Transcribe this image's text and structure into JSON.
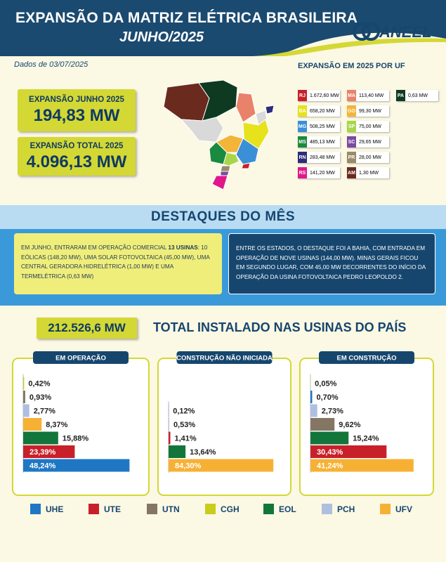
{
  "header": {
    "title": "EXPANSÃO DA MATRIZ ELÉTRICA BRASILEIRA",
    "subtitle": "JUNHO/2025",
    "logo": "ANEEL"
  },
  "date": "Dados de 03/07/2025",
  "kpis": [
    {
      "label": "EXPANSÃO JUNHO 2025",
      "value": "194,83 MW"
    },
    {
      "label": "EXPANSÃO TOTAL 2025",
      "value": "4.096,13 MW"
    }
  ],
  "uf_expansion": {
    "title": "EXPANSÃO EM 2025 POR UF",
    "items": [
      {
        "uf": "RJ",
        "value": "1.672,60 MW",
        "color": "#c8202a"
      },
      {
        "uf": "BA",
        "value": "658,20 MW",
        "color": "#e6e21c"
      },
      {
        "uf": "MG",
        "value": "508,25 MW",
        "color": "#3b8fd6"
      },
      {
        "uf": "MS",
        "value": "485,13 MW",
        "color": "#1a8a3e"
      },
      {
        "uf": "RN",
        "value": "283,48 MW",
        "color": "#2d2c7a"
      },
      {
        "uf": "RS",
        "value": "141,20 MW",
        "color": "#e0188a"
      },
      {
        "uf": "MA",
        "value": "113,40 MW",
        "color": "#e8826a"
      },
      {
        "uf": "GO",
        "value": "99,30 MW",
        "color": "#f3b43a"
      },
      {
        "uf": "SP",
        "value": "75,00 MW",
        "color": "#a8d64a"
      },
      {
        "uf": "SC",
        "value": "29,65 MW",
        "color": "#7a4aa0"
      },
      {
        "uf": "PR",
        "value": "28,00 MW",
        "color": "#9a8a6a"
      },
      {
        "uf": "AM",
        "value": "1,30 MW",
        "color": "#6b2a1e"
      },
      {
        "uf": "PA",
        "value": "0,63 MW",
        "color": "#0e3a22"
      }
    ]
  },
  "highlights": {
    "title": "DESTAQUES DO MÊS",
    "left": {
      "before": "EM JUNHO, ENTRARAM EM OPERAÇÃO COMERCIAL ",
      "bold": "13 USINAS",
      "after": ": 10 EÓLICAS (148,20 MW), UMA SOLAR FOTOVOLTAICA (45,00 MW), UMA CENTRAL GERADORA HIDRELÉTRICA (1,00 MW) E UMA TERMELÉTRICA (0,63 MW)"
    },
    "right": "ENTRE OS ESTADOS, O DESTAQUE FOI A BAHIA, COM ENTRADA EM OPERAÇÃO DE NOVE USINAS (144,00 MW). MINAS GERAIS FICOU EM SEGUNDO LUGAR, COM 45,00 MW DECORRENTES DO INÍCIO DA OPERAÇÃO DA USINA FOTOVOLTAICA PEDRO LEOPOLDO 2."
  },
  "total": {
    "value": "212.526,6 MW",
    "label": "TOTAL INSTALADO NAS USINAS DO PAÍS"
  },
  "chart_data": [
    {
      "type": "bar",
      "title": "EM OPERAÇÃO",
      "xlim": [
        0,
        58
      ],
      "values": [
        0.42,
        0.93,
        2.77,
        8.37,
        15.88,
        23.39,
        48.24
      ],
      "value_labels": [
        "0,42%",
        "0,93%",
        "2,77%",
        "8,37%",
        "15,88%",
        "23,39%",
        "48,24%"
      ],
      "colors": [
        "#c9cc1c",
        "#857663",
        "#aebfe0",
        "#f6b135",
        "#12763a",
        "#c8202a",
        "#1f77c4"
      ]
    },
    {
      "type": "bar",
      "title": "CONSTRUÇÃO NÃO INICIADA",
      "xlim": [
        0,
        100
      ],
      "values": [
        0.12,
        0.53,
        1.41,
        13.64,
        84.3
      ],
      "value_labels": [
        "0,12%",
        "0,53%",
        "1,41%",
        "13,64%",
        "84,30%"
      ],
      "colors": [
        "#1f77c4",
        "#aebfe0",
        "#c8202a",
        "#12763a",
        "#f6b135"
      ]
    },
    {
      "type": "bar",
      "title": "EM CONSTRUÇÃO",
      "xlim": [
        0,
        50
      ],
      "values": [
        0.05,
        0.7,
        2.73,
        9.62,
        15.24,
        30.43,
        41.24
      ],
      "value_labels": [
        "0,05%",
        "0,70%",
        "2,73%",
        "9,62%",
        "15,24%",
        "30,43%",
        "41,24%"
      ],
      "colors": [
        "#c9cc1c",
        "#1f77c4",
        "#aebfe0",
        "#857663",
        "#12763a",
        "#c8202a",
        "#f6b135"
      ]
    }
  ],
  "legend": [
    {
      "name": "UHE",
      "color": "#1f77c4"
    },
    {
      "name": "UTE",
      "color": "#c8202a"
    },
    {
      "name": "UTN",
      "color": "#857663"
    },
    {
      "name": "CGH",
      "color": "#c9cc1c"
    },
    {
      "name": "EOL",
      "color": "#12763a"
    },
    {
      "name": "PCH",
      "color": "#aebfe0"
    },
    {
      "name": "UFV",
      "color": "#f6b135"
    }
  ]
}
